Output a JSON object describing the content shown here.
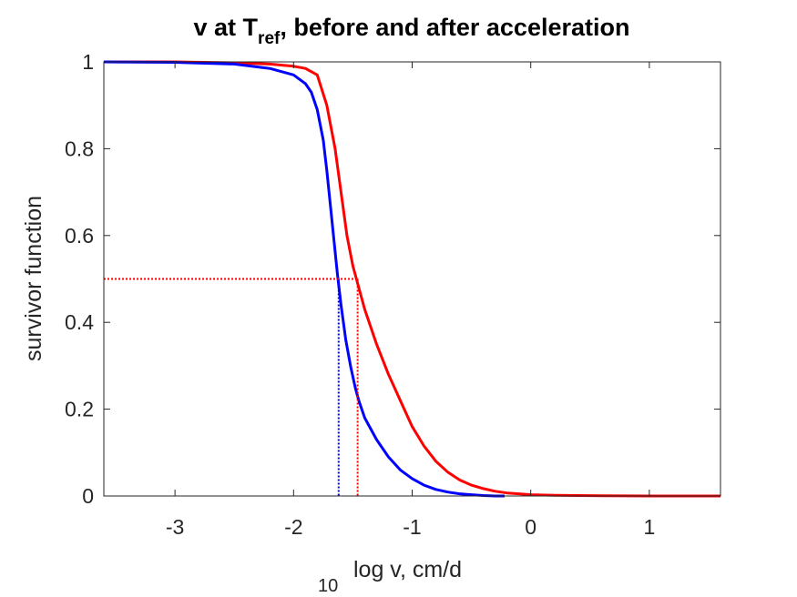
{
  "chart_data": {
    "type": "line",
    "title": {
      "prefix": "v at T",
      "subscript": "ref",
      "suffix": ", before and after acceleration"
    },
    "xlabel": {
      "prefix_subscript": "10",
      "text": "log v, cm/d"
    },
    "ylabel": "survivor function",
    "xlim": [
      -3.6,
      1.6
    ],
    "ylim": [
      0,
      1
    ],
    "xticks": [
      -3,
      -2,
      -1,
      0,
      1
    ],
    "xtick_labels": [
      "-3",
      "-2",
      "-1",
      "0",
      "1"
    ],
    "yticks": [
      0,
      0.2,
      0.4,
      0.6,
      0.8,
      1
    ],
    "ytick_labels": [
      "0",
      "0.2",
      "0.4",
      "0.6",
      "0.8",
      "1"
    ],
    "grid": false,
    "series": [
      {
        "color": "#ff0000",
        "x": [
          -3.6,
          -3.0,
          -2.5,
          -2.2,
          -2.0,
          -1.9,
          -1.8,
          -1.72,
          -1.65,
          -1.6,
          -1.55,
          -1.5,
          -1.47,
          -1.4,
          -1.3,
          -1.2,
          -1.1,
          -1.0,
          -0.9,
          -0.8,
          -0.7,
          -0.6,
          -0.5,
          -0.4,
          -0.3,
          -0.2,
          -0.1,
          0.0,
          0.2,
          0.4,
          0.6,
          0.8,
          1.0,
          1.3,
          1.6
        ],
        "y": [
          1.0,
          1.0,
          0.998,
          0.995,
          0.99,
          0.985,
          0.97,
          0.9,
          0.8,
          0.7,
          0.6,
          0.53,
          0.5,
          0.43,
          0.35,
          0.28,
          0.22,
          0.16,
          0.115,
          0.08,
          0.055,
          0.037,
          0.025,
          0.017,
          0.011,
          0.007,
          0.005,
          0.003,
          0.0015,
          0.001,
          0.0005,
          0.0003,
          0.0001,
          0.0,
          0.0
        ]
      },
      {
        "color": "#0000ff",
        "x": [
          -3.6,
          -3.0,
          -2.5,
          -2.2,
          -2.0,
          -1.9,
          -1.85,
          -1.8,
          -1.75,
          -1.72,
          -1.69,
          -1.66,
          -1.63,
          -1.6,
          -1.56,
          -1.52,
          -1.48,
          -1.45,
          -1.4,
          -1.3,
          -1.2,
          -1.1,
          -1.0,
          -0.9,
          -0.8,
          -0.7,
          -0.6,
          -0.5,
          -0.4,
          -0.3,
          -0.22
        ],
        "y": [
          1.0,
          0.999,
          0.995,
          0.985,
          0.97,
          0.95,
          0.93,
          0.89,
          0.82,
          0.75,
          0.67,
          0.59,
          0.51,
          0.44,
          0.36,
          0.3,
          0.25,
          0.22,
          0.18,
          0.13,
          0.09,
          0.06,
          0.04,
          0.025,
          0.015,
          0.009,
          0.005,
          0.003,
          0.001,
          0.0,
          0.0
        ]
      }
    ],
    "reference_lines": [
      {
        "color": "#0000ff",
        "y": 0.5,
        "x": -1.62
      },
      {
        "color": "#ff0000",
        "y": 0.5,
        "x": -1.46
      }
    ]
  }
}
